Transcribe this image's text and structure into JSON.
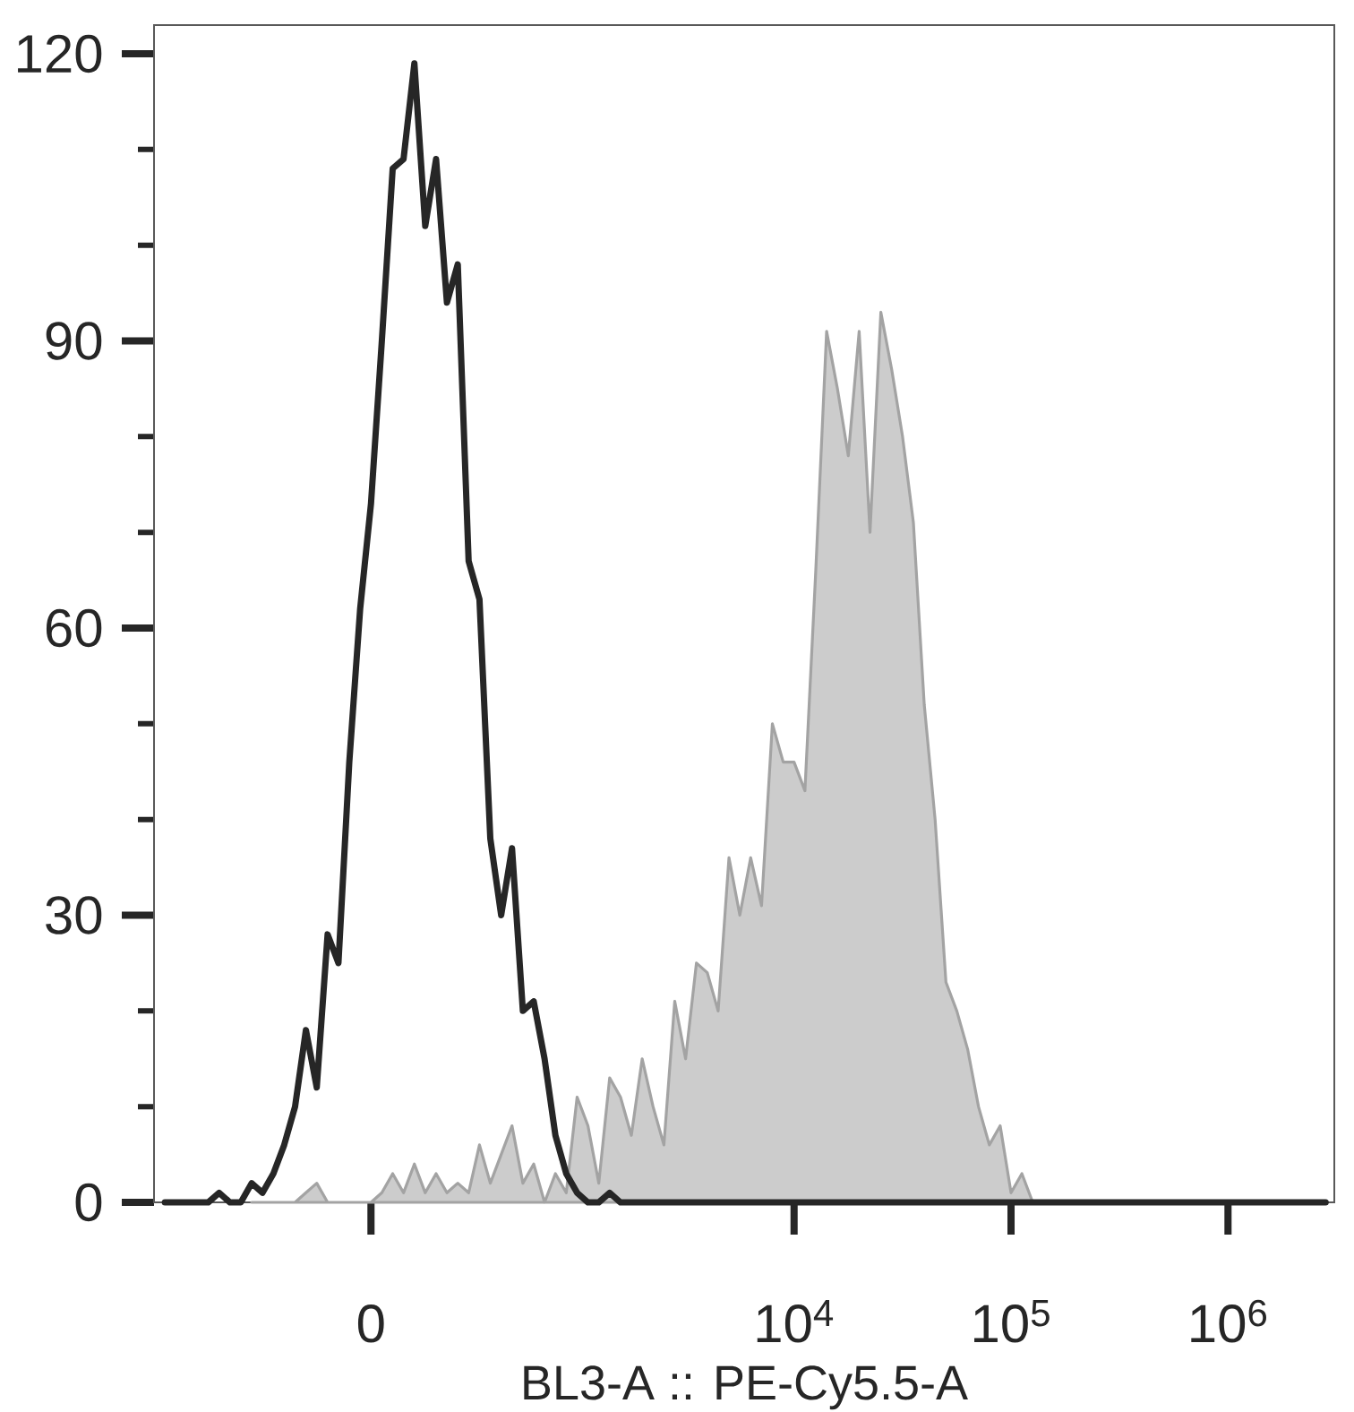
{
  "chart_data": {
    "type": "line",
    "xlabel": "BL3-A :: PE-Cy5.5-A",
    "categories": [
      null,
      null,
      null,
      null,
      null,
      null,
      null,
      null,
      null,
      null,
      null,
      null,
      null,
      null,
      null,
      null,
      null,
      null,
      null,
      "0",
      null,
      null,
      null,
      null,
      null,
      null,
      null,
      null,
      null,
      null,
      null,
      null,
      null,
      null,
      null,
      null,
      null,
      null,
      null,
      null,
      null,
      null,
      null,
      null,
      null,
      null,
      null,
      null,
      null,
      null,
      null,
      null,
      null,
      null,
      null,
      null,
      null,
      null,
      "10$^{4}$",
      null,
      null,
      null,
      null,
      null,
      null,
      null,
      null,
      null,
      null,
      null,
      null,
      null,
      null,
      null,
      null,
      null,
      null,
      null,
      "10$^{5}$",
      null,
      null,
      null,
      null,
      null,
      null,
      null,
      null,
      null,
      null,
      null,
      null,
      null,
      null,
      null,
      null,
      null,
      null,
      null,
      "10$^{6}$",
      null,
      null,
      null,
      null,
      null,
      null,
      null,
      null,
      null
    ],
    "ylim": [
      0,
      123
    ],
    "yticks": [
      0,
      {
        "value": 10,
        "label": null
      },
      {
        "value": 20,
        "label": null
      },
      30,
      {
        "value": 40,
        "label": null
      },
      {
        "value": 50,
        "label": null
      },
      60,
      {
        "value": 70,
        "label": null
      },
      {
        "value": 80,
        "label": null
      },
      90,
      {
        "value": 100,
        "label": null
      },
      {
        "value": 110,
        "label": null
      },
      120
    ],
    "series": [
      {
        "type": "area",
        "color": "#cccccc",
        "values": [
          null,
          null,
          null,
          null,
          null,
          null,
          null,
          null,
          0,
          0,
          0,
          0,
          0,
          1,
          2,
          0,
          0,
          0,
          0,
          0,
          1,
          3,
          1,
          4,
          1,
          3,
          1,
          2,
          1,
          6,
          2,
          5,
          8,
          2,
          4,
          0,
          3,
          1,
          11,
          8,
          2,
          13,
          11,
          7,
          15,
          10,
          6,
          21,
          15,
          25,
          24,
          20,
          36,
          30,
          36,
          31,
          50,
          46,
          46,
          43,
          66,
          91,
          85,
          78,
          91,
          70,
          93,
          87,
          80,
          71,
          52,
          40,
          23,
          20,
          16,
          10,
          6,
          8,
          1,
          3,
          0,
          null,
          null,
          null,
          null,
          null,
          null,
          null,
          null,
          null,
          null,
          null,
          null,
          null,
          null,
          null,
          null,
          null,
          null,
          null,
          null,
          null,
          null,
          null,
          null,
          null,
          null,
          null
        ]
      },
      {
        "color": "#262626",
        "values": [
          0,
          0,
          0,
          0,
          0,
          1,
          0,
          0,
          2,
          1,
          3,
          6,
          10,
          18,
          12,
          28,
          25,
          46,
          62,
          73,
          90,
          108,
          109,
          119,
          102,
          109,
          94,
          98,
          67,
          63,
          38,
          30,
          37,
          20,
          21,
          15,
          7,
          3,
          1,
          0,
          0,
          1,
          0,
          0,
          0,
          0,
          0,
          0,
          0,
          0,
          0,
          0,
          0,
          0,
          0,
          0,
          0,
          0,
          0,
          0,
          0,
          0,
          0,
          0,
          0,
          0,
          0,
          0,
          0,
          0,
          0,
          0,
          0,
          0,
          0,
          0,
          0,
          0,
          0,
          0,
          0,
          0,
          0,
          0,
          0,
          0,
          0,
          0,
          0,
          0,
          0,
          0,
          0,
          0,
          0,
          0,
          0,
          0,
          0,
          0,
          0,
          0,
          0,
          0,
          0,
          0,
          0,
          0
        ]
      }
    ]
  }
}
